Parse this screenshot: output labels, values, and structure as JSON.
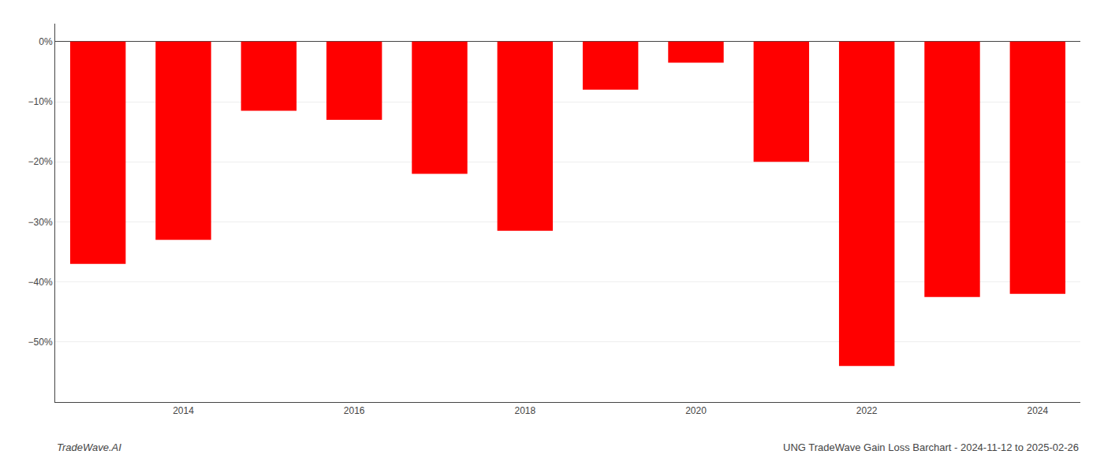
{
  "chart_data": {
    "type": "bar",
    "title": "UNG TradeWave Gain Loss Barchart - 2024-11-12 to 2025-02-26",
    "annotations": [
      "TradeWave.AI"
    ],
    "categories": [
      null,
      "2014",
      null,
      "2016",
      null,
      "2018",
      null,
      "2020",
      null,
      "2022",
      null,
      "2024"
    ],
    "values": [
      -37.0,
      -33.0,
      -11.5,
      -13.0,
      -22.0,
      -31.5,
      -8.0,
      -3.5,
      -20.0,
      -54.0,
      -42.5,
      -42.0
    ],
    "color": "#ff0000",
    "ylim": [
      -60,
      3
    ],
    "yticks": [
      {
        "value": 0,
        "label": "0%"
      },
      {
        "value": -10,
        "label": "−10%"
      },
      {
        "value": -20,
        "label": "−20%"
      },
      {
        "value": -30,
        "label": "−30%"
      },
      {
        "value": -40,
        "label": "−40%"
      },
      {
        "value": -50,
        "label": "−50%"
      }
    ],
    "grid": true
  }
}
